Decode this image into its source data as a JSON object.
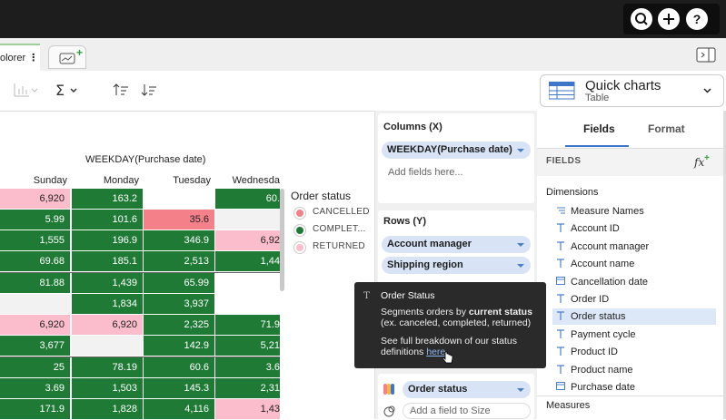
{
  "tabs": {
    "active": "olorer"
  },
  "toolbar": {
    "quick_charts": {
      "title": "Quick charts",
      "subtitle": "Table"
    }
  },
  "table": {
    "header": "WEEKDAY(Purchase date)",
    "columns": [
      "Sunday",
      "Monday",
      "Tuesday",
      "Wednesda"
    ],
    "row_groups": [
      [
        [
          {
            "text": "6,920",
            "fill": "#fbbccb"
          },
          {
            "text": "163.2",
            "fill": "#1f7a36"
          },
          {
            "fill": "#ffffff"
          },
          {
            "text": "60.",
            "fill": "#1f7a36"
          }
        ],
        [
          {
            "text": "5.99",
            "fill": "#1f7a36"
          },
          {
            "text": "101.6",
            "fill": "#1f7a36"
          },
          {
            "text": "35.6",
            "fill": "#f48089"
          },
          {
            "fill": "#f2f2f2"
          }
        ],
        [
          {
            "text": "1,555",
            "fill": "#1f7a36"
          },
          {
            "text": "196.9",
            "fill": "#1f7a36"
          },
          {
            "text": "346.9",
            "fill": "#1f7a36"
          },
          {
            "text": "6,92",
            "fill": "#fbbccb"
          }
        ],
        [
          {
            "text": "69.68",
            "fill": "#1f7a36"
          },
          {
            "text": "185.1",
            "fill": "#1f7a36"
          },
          {
            "text": "2,513",
            "fill": "#1f7a36"
          },
          {
            "text": "1,44",
            "fill": "#1f7a36"
          }
        ]
      ],
      [
        [
          {
            "text": "81.88",
            "fill": "#1f7a36"
          },
          {
            "text": "1,439",
            "fill": "#1f7a36"
          },
          {
            "text": "65.99",
            "fill": "#1f7a36"
          },
          {
            "fill": "#ffffff"
          }
        ],
        [
          {
            "fill": "#f2f2f2"
          },
          {
            "text": "1,834",
            "fill": "#1f7a36"
          },
          {
            "text": "3,937",
            "fill": "#1f7a36"
          },
          {
            "fill": "#ffffff"
          }
        ],
        [
          {
            "text": "6,920",
            "fill": "#fbbccb"
          },
          {
            "text": "6,920",
            "fill": "#fbbccb"
          },
          {
            "text": "2,325",
            "fill": "#1f7a36"
          },
          {
            "text": "71.9",
            "fill": "#1f7a36"
          }
        ],
        [
          {
            "text": "3,677",
            "fill": "#1f7a36"
          },
          {
            "fill": "#f2f2f2"
          },
          {
            "text": "142.9",
            "fill": "#1f7a36"
          },
          {
            "text": "5,21",
            "fill": "#1f7a36"
          }
        ]
      ],
      [
        [
          {
            "text": "25",
            "fill": "#1f7a36"
          },
          {
            "text": "78.19",
            "fill": "#1f7a36"
          },
          {
            "text": "60.6",
            "fill": "#1f7a36"
          },
          {
            "text": "3.6",
            "fill": "#1f7a36"
          }
        ],
        [
          {
            "text": "3.69",
            "fill": "#1f7a36"
          },
          {
            "text": "1,503",
            "fill": "#1f7a36"
          },
          {
            "text": "145.3",
            "fill": "#1f7a36"
          },
          {
            "text": "2,31",
            "fill": "#1f7a36"
          }
        ],
        [
          {
            "text": "171.9",
            "fill": "#1f7a36"
          },
          {
            "text": "1,828",
            "fill": "#1f7a36"
          },
          {
            "text": "4,116",
            "fill": "#1f7a36"
          },
          {
            "text": "1,43",
            "fill": "#fbbccb"
          }
        ]
      ]
    ]
  },
  "legend": {
    "title": "Order status",
    "items": [
      {
        "label": "CANCELLED",
        "color": "#f48089"
      },
      {
        "label": "COMPLET...",
        "color": "#1f7a36"
      },
      {
        "label": "RETURNED",
        "color": "#fbbccb"
      }
    ]
  },
  "shelves": {
    "columns": {
      "title": "Columns (X)",
      "fields": [
        "WEEKDAY(Purchase date)"
      ],
      "placeholder": "Add fields here..."
    },
    "rows": {
      "title": "Rows (Y)",
      "fields": [
        "Account manager",
        "Shipping region"
      ]
    },
    "marks": {
      "color_field": "Order status",
      "size_placeholder": "Add a field to Size"
    }
  },
  "tooltip": {
    "title": "Order Status",
    "line1_prefix": "Segments orders by ",
    "line1_bold": "current status",
    "line2": "(ex. canceled, completed, returned)",
    "line3": "See full breakdown of our status",
    "line4_prefix": "definitions ",
    "link": "here"
  },
  "side_panel": {
    "tabs": [
      "Fields",
      "Format"
    ],
    "fields_header": "FIELDS",
    "dimensions_title": "Dimensions",
    "dimensions": [
      {
        "label": "Measure Names",
        "icon": "measure"
      },
      {
        "label": "Account ID",
        "icon": "text"
      },
      {
        "label": "Account manager",
        "icon": "text"
      },
      {
        "label": "Account name",
        "icon": "text"
      },
      {
        "label": "Cancellation date",
        "icon": "date"
      },
      {
        "label": "Order ID",
        "icon": "text"
      },
      {
        "label": "Order status",
        "icon": "text",
        "selected": true
      },
      {
        "label": "Payment cycle",
        "icon": "text"
      },
      {
        "label": "Product ID",
        "icon": "text"
      },
      {
        "label": "Product name",
        "icon": "text"
      },
      {
        "label": "Purchase date",
        "icon": "date"
      }
    ],
    "measures_title": "Measures"
  }
}
